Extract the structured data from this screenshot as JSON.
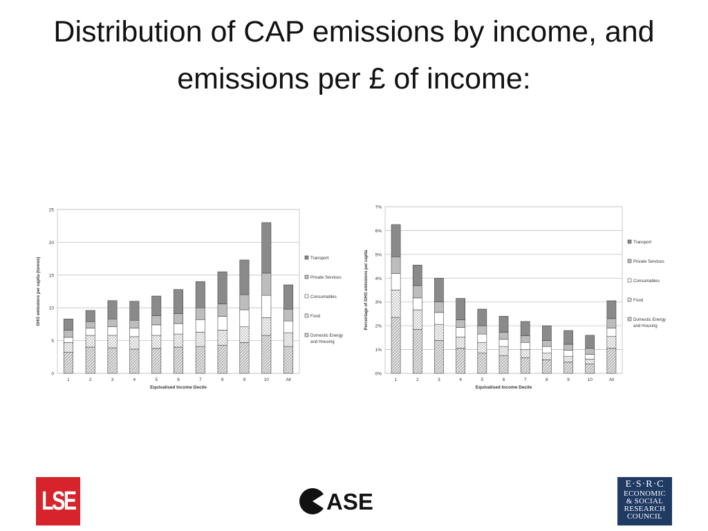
{
  "slide": {
    "title": "Distribution of CAP emissions by income, and emissions per £ of income:"
  },
  "logos": {
    "lse": "LSE",
    "case": "CASE",
    "esrc": [
      "E·S·R·C",
      "ECONOMIC",
      "& SOCIAL",
      "RESEARCH",
      "COUNCIL"
    ]
  },
  "chart_data": [
    {
      "type": "bar",
      "stacked": true,
      "xlabel": "Equivalised Income Decile",
      "ylabel": "GHG emissions per capita (tonnes)",
      "ylim": [
        0,
        25
      ],
      "yticks": [
        0,
        5,
        10,
        15,
        20,
        25
      ],
      "ytick_labels": [
        "0",
        "5",
        "10",
        "15",
        "20",
        "25"
      ],
      "grid": true,
      "legend_position": "right",
      "categories": [
        "1",
        "2",
        "3",
        "4",
        "5",
        "6",
        "7",
        "8",
        "9",
        "10",
        "All"
      ],
      "series": [
        {
          "name": "Domestic Energy and Housing",
          "pattern": "diagonal",
          "values": [
            3.2,
            4.0,
            3.9,
            3.7,
            3.8,
            4.0,
            4.1,
            4.3,
            4.7,
            5.8,
            4.1
          ]
        },
        {
          "name": "Food",
          "pattern": "dots",
          "values": [
            1.5,
            1.8,
            1.9,
            1.9,
            2.0,
            2.0,
            2.2,
            2.3,
            2.4,
            2.7,
            2.1
          ]
        },
        {
          "name": "Consumables",
          "pattern": "white",
          "values": [
            0.8,
            1.1,
            1.3,
            1.3,
            1.6,
            1.6,
            1.9,
            2.1,
            2.6,
            3.4,
            1.8
          ]
        },
        {
          "name": "Private Services",
          "pattern": "light",
          "values": [
            1.1,
            1.0,
            1.2,
            1.2,
            1.4,
            1.5,
            1.8,
            1.9,
            2.3,
            3.4,
            1.8
          ]
        },
        {
          "name": "Transport",
          "pattern": "dark",
          "values": [
            1.7,
            1.7,
            2.8,
            2.9,
            3.0,
            3.7,
            4.0,
            4.9,
            5.3,
            7.7,
            3.7
          ]
        }
      ]
    },
    {
      "type": "bar",
      "stacked": true,
      "xlabel": "Equivalised Income Decile",
      "ylabel": "Percentage of GHG emissions per capita",
      "ylim": [
        0,
        7
      ],
      "yticks": [
        0,
        1,
        2,
        3,
        4,
        5,
        6,
        7
      ],
      "ytick_labels": [
        "0%",
        "1%",
        "2%",
        "3%",
        "4%",
        "5%",
        "6%",
        "7%"
      ],
      "grid": true,
      "legend_position": "right",
      "categories": [
        "1",
        "2",
        "3",
        "4",
        "5",
        "6",
        "7",
        "8",
        "9",
        "10",
        "All"
      ],
      "series": [
        {
          "name": "Domestic Energy and Housing",
          "pattern": "diagonal",
          "values": [
            2.35,
            1.85,
            1.38,
            1.05,
            0.85,
            0.75,
            0.65,
            0.57,
            0.47,
            0.4,
            1.05
          ]
        },
        {
          "name": "Food",
          "pattern": "dots",
          "values": [
            1.15,
            0.82,
            0.68,
            0.48,
            0.45,
            0.38,
            0.35,
            0.28,
            0.25,
            0.2,
            0.5
          ]
        },
        {
          "name": "Consumables",
          "pattern": "white",
          "values": [
            0.7,
            0.5,
            0.5,
            0.4,
            0.35,
            0.3,
            0.3,
            0.28,
            0.25,
            0.2,
            0.35
          ]
        },
        {
          "name": "Private Services",
          "pattern": "light",
          "values": [
            0.7,
            0.52,
            0.44,
            0.32,
            0.35,
            0.3,
            0.28,
            0.25,
            0.25,
            0.25,
            0.4
          ]
        },
        {
          "name": "Transport",
          "pattern": "dark",
          "values": [
            1.35,
            0.86,
            1.0,
            0.9,
            0.7,
            0.67,
            0.6,
            0.62,
            0.58,
            0.55,
            0.75
          ]
        }
      ]
    }
  ]
}
